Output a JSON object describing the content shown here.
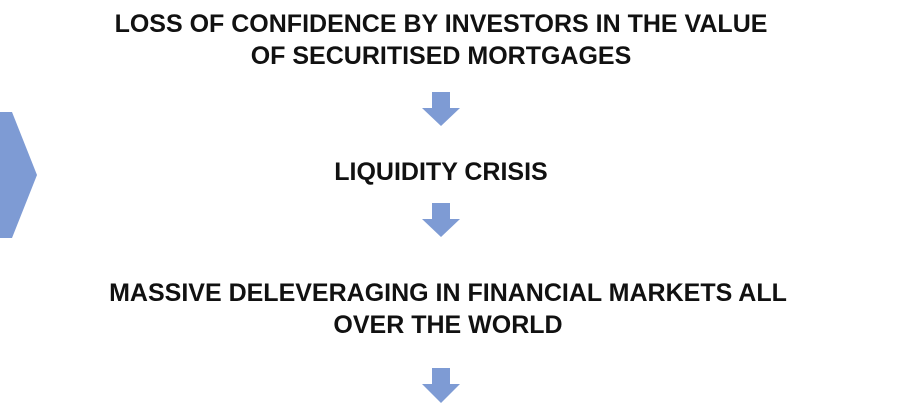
{
  "nodes": [
    {
      "label": "LOSS OF CONFIDENCE BY INVESTORS IN THE VALUE\nOF SECURITISED MORTGAGES"
    },
    {
      "label": "LIQUIDITY CRISIS"
    },
    {
      "label": "MASSIVE DELEVERAGING IN FINANCIAL MARKETS ALL\nOVER THE WORLD"
    }
  ]
}
